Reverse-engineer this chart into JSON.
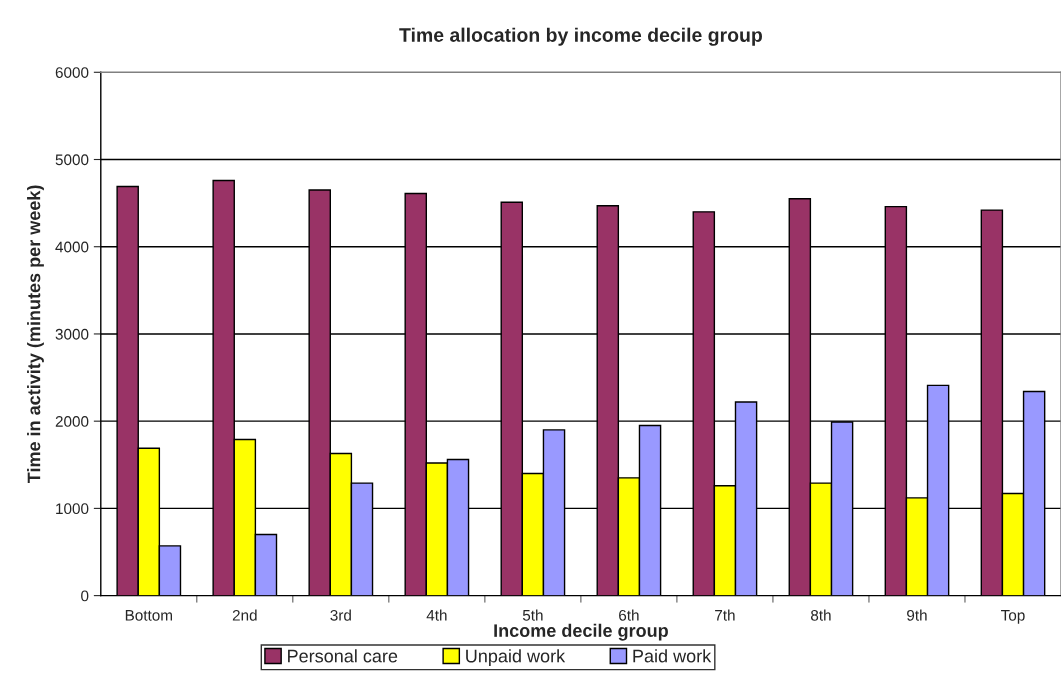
{
  "chart_data": {
    "type": "bar",
    "title": "Time allocation by income decile group",
    "xlabel": "Income decile group",
    "ylabel": "Time in activity (minutes per week)",
    "categories": [
      "Bottom",
      "2nd",
      "3rd",
      "4th",
      "5th",
      "6th",
      "7th",
      "8th",
      "9th",
      "Top"
    ],
    "series": [
      {
        "name": "Personal care",
        "color": "#993366",
        "values": [
          4690,
          4760,
          4650,
          4610,
          4510,
          4470,
          4400,
          4550,
          4460,
          4420
        ]
      },
      {
        "name": "Unpaid work",
        "color": "#ffff00",
        "values": [
          1690,
          1790,
          1630,
          1520,
          1400,
          1350,
          1260,
          1290,
          1120,
          1170
        ]
      },
      {
        "name": "Paid work",
        "color": "#9999ff",
        "values": [
          570,
          700,
          1290,
          1560,
          1900,
          1950,
          2220,
          1990,
          2410,
          2340
        ]
      }
    ],
    "ylim": [
      0,
      6000
    ],
    "yticks": [
      0,
      1000,
      2000,
      3000,
      4000,
      5000,
      6000
    ],
    "grid": "y",
    "legend": "bottom"
  }
}
